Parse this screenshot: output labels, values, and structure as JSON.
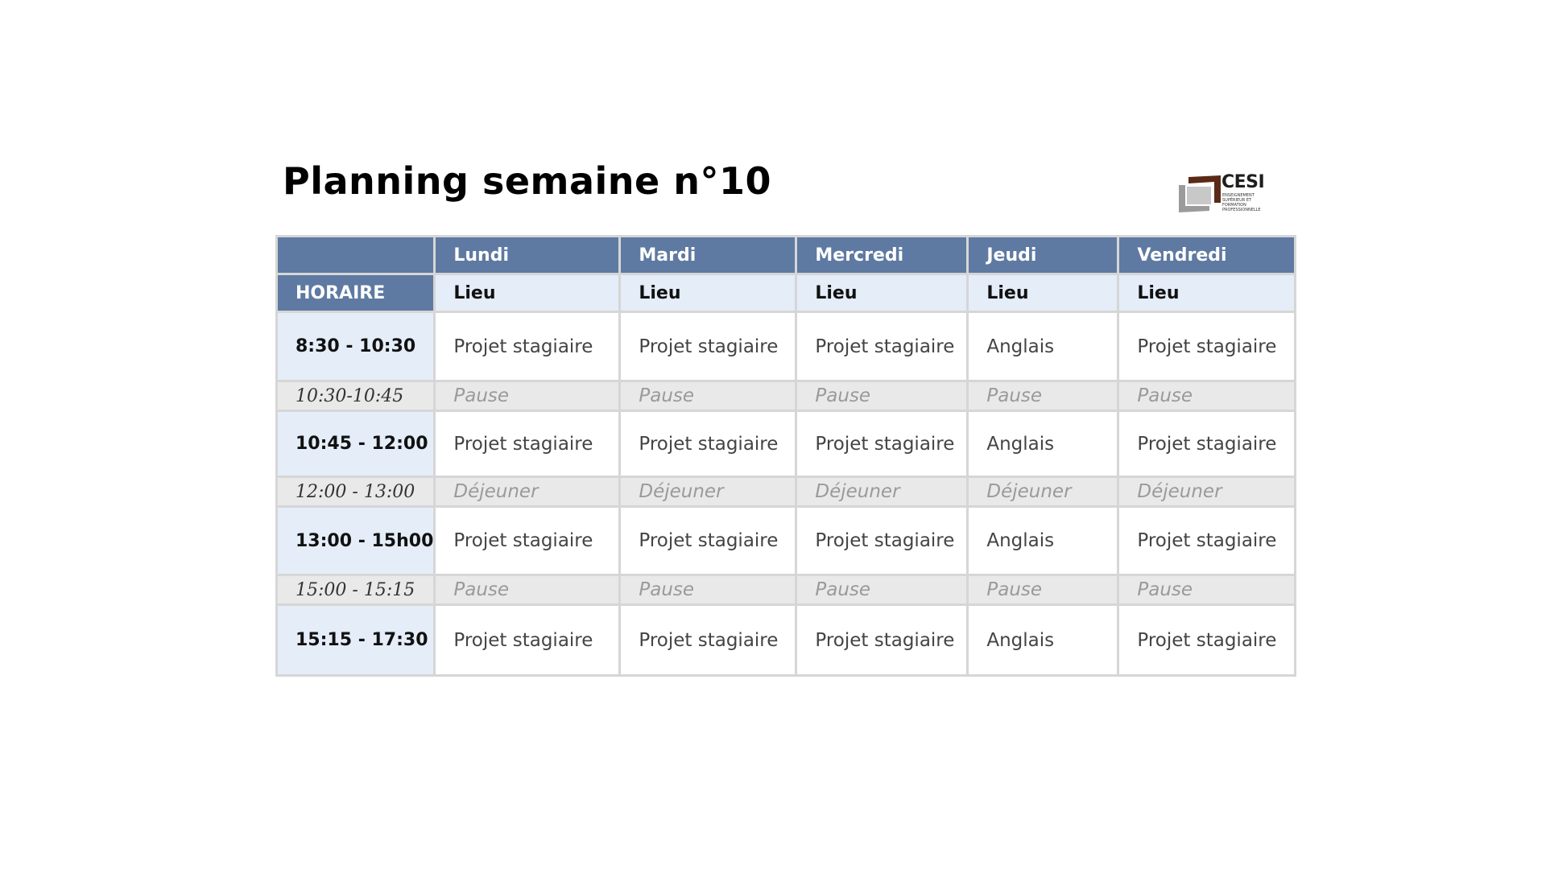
{
  "title": "Planning semaine n°10",
  "logo": {
    "name": "CESI",
    "text": "CESI",
    "subtitle": "ENSEIGNEMENT SUPÉRIEUR ET FORMATION PROFESSIONNELLE",
    "colors": {
      "brown": "#5a2a17",
      "grey": "#9b9b9b"
    }
  },
  "colors": {
    "header_blue": "#5e7aa2",
    "light_blue": "#e4edf8",
    "break_grey": "#e9e9e9",
    "border": "#d6d6d6"
  },
  "table": {
    "days": [
      "Lundi",
      "Mardi",
      "Mercredi",
      "Jeudi",
      "Vendredi"
    ],
    "horaire_label": "HORAIRE",
    "lieu_label": "Lieu",
    "rows": [
      {
        "time": "8:30 - 10:30",
        "type": "session",
        "cells": [
          "Projet stagiaire",
          "Projet stagiaire",
          "Projet stagiaire",
          "Anglais",
          "Projet stagiaire"
        ]
      },
      {
        "time": "10:30-10:45",
        "type": "break",
        "cells": [
          "Pause",
          "Pause",
          "Pause",
          "Pause",
          "Pause"
        ]
      },
      {
        "time": "10:45 - 12:00",
        "type": "session",
        "cells": [
          "Projet stagiaire",
          "Projet stagiaire",
          "Projet stagiaire",
          "Anglais",
          "Projet stagiaire"
        ]
      },
      {
        "time": "12:00 - 13:00",
        "type": "break",
        "cells": [
          "Déjeuner",
          "Déjeuner",
          "Déjeuner",
          "Déjeuner",
          "Déjeuner"
        ]
      },
      {
        "time": "13:00 - 15h00",
        "type": "session",
        "cells": [
          "Projet stagiaire",
          "Projet stagiaire",
          "Projet stagiaire",
          "Anglais",
          "Projet stagiaire"
        ]
      },
      {
        "time": "15:00 - 15:15",
        "type": "break",
        "cells": [
          "Pause",
          "Pause",
          "Pause",
          "Pause",
          "Pause"
        ]
      },
      {
        "time": "15:15 - 17:30",
        "type": "session",
        "cells": [
          "Projet stagiaire",
          "Projet stagiaire",
          "Projet stagiaire",
          "Anglais",
          "Projet stagiaire"
        ]
      }
    ]
  }
}
